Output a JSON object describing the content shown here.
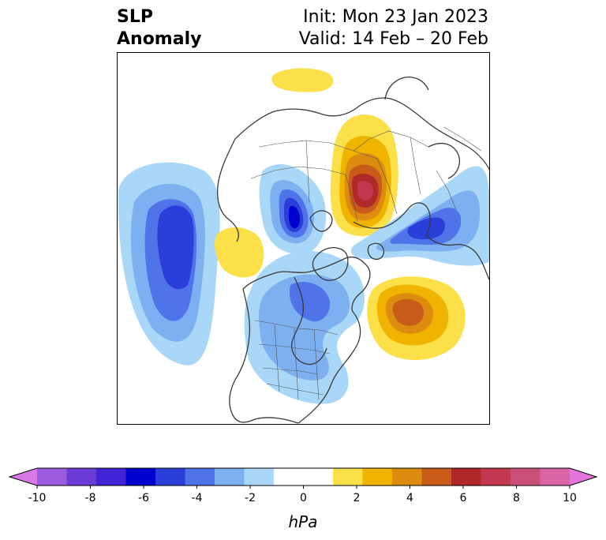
{
  "title": {
    "left_line1": "SLP",
    "left_line2": "Anomaly",
    "init": "Init: Mon 23 Jan 2023",
    "valid": "Valid: 14 Feb – 20 Feb"
  },
  "colorbar": {
    "unit": "hPa",
    "ticks": [
      "-10",
      "-8",
      "-6",
      "-4",
      "-2",
      "0",
      "2",
      "4",
      "6",
      "8",
      "10"
    ],
    "under_color": "#d87ae6",
    "over_color": "#e575dc",
    "colors": [
      "#d87ae6",
      "#9c5ae0",
      "#6b3bd8",
      "#3f23d4",
      "#0000cc",
      "#2a3fd9",
      "#4f73e8",
      "#7db0f0",
      "#a8d7f7",
      "#ffffff",
      "#ffffff",
      "#fbe04a",
      "#f0b400",
      "#dc8c0e",
      "#c85a1a",
      "#b02828",
      "#c0374f",
      "#c8507a",
      "#d965a6",
      "#e575dc"
    ]
  },
  "map": {
    "projection": "North Polar Stereographic",
    "features": [
      {
        "name": "pacific-low",
        "sign": "negative",
        "peak_hpa": -5
      },
      {
        "name": "ural-siberia-high",
        "sign": "positive",
        "peak_hpa": 6
      },
      {
        "name": "north-atlantic-high",
        "sign": "positive",
        "peak_hpa": 4
      },
      {
        "name": "arctic-low",
        "sign": "negative",
        "peak_hpa": -5
      },
      {
        "name": "east-asia-low",
        "sign": "negative",
        "peak_hpa": -4
      },
      {
        "name": "canada-low",
        "sign": "negative",
        "peak_hpa": -2
      },
      {
        "name": "alaska-high",
        "sign": "positive",
        "peak_hpa": 1
      },
      {
        "name": "siberia-north-high",
        "sign": "positive",
        "peak_hpa": 1
      }
    ]
  }
}
